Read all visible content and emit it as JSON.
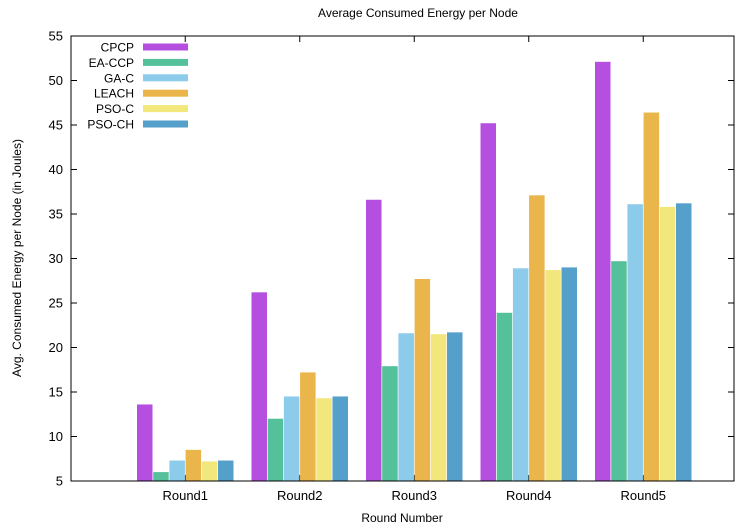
{
  "chart_data": {
    "type": "bar",
    "title": "Average Consumed Energy per Node",
    "xlabel": "Round Number",
    "ylabel": "Avg. Consumed Energy per Node (in Joules)",
    "categories": [
      "Round1",
      "Round2",
      "Round3",
      "Round4",
      "Round5"
    ],
    "ylim": [
      5,
      55
    ],
    "yticks": [
      5,
      10,
      15,
      20,
      25,
      30,
      35,
      40,
      45,
      50,
      55
    ],
    "legend_position": "top-left",
    "grid": false,
    "series": [
      {
        "name": "CPCP",
        "color": "#b44fe0",
        "values": [
          13.6,
          26.2,
          36.6,
          45.2,
          52.1
        ]
      },
      {
        "name": "EA-CCP",
        "color": "#55c19a",
        "values": [
          6.0,
          12.0,
          17.9,
          23.9,
          29.7
        ]
      },
      {
        "name": "GA-C",
        "color": "#8ccbea",
        "values": [
          7.3,
          14.5,
          21.6,
          28.9,
          36.1
        ]
      },
      {
        "name": "LEACH",
        "color": "#eab54a",
        "values": [
          8.5,
          17.2,
          27.7,
          37.1,
          46.4
        ]
      },
      {
        "name": "PSO-C",
        "color": "#f1e77c",
        "values": [
          7.2,
          14.3,
          21.5,
          28.7,
          35.8
        ]
      },
      {
        "name": "PSO-CH",
        "color": "#559fcb",
        "values": [
          7.3,
          14.5,
          21.7,
          29.0,
          36.2
        ]
      }
    ]
  }
}
